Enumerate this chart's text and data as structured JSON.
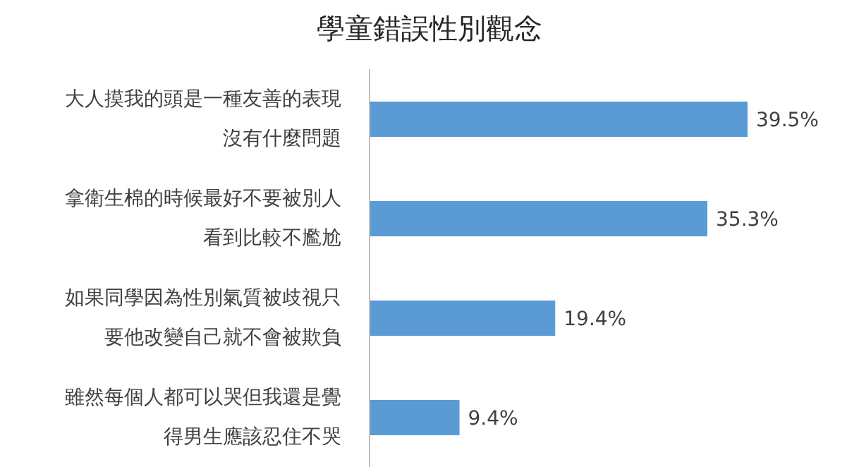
{
  "chart_data": {
    "type": "bar",
    "orientation": "horizontal",
    "title": "學童錯誤性別觀念",
    "categories": [
      "大人摸我的頭是一種友善的表現沒有什麼問題",
      "拿衛生棉的時候最好不要被別人看到比較不尷尬",
      "如果同學因為性別氣質被歧視只要他改變自己就不會被欺負",
      "雖然每個人都可以哭但我還是覺得男生應該忍住不哭"
    ],
    "values": [
      39.5,
      35.3,
      19.4,
      9.4
    ],
    "value_labels": [
      "39.5%",
      "35.3%",
      "19.4%",
      "9.4%"
    ],
    "color": "#5b9bd5",
    "grid": false,
    "legend": false,
    "tick_labels": "y"
  }
}
